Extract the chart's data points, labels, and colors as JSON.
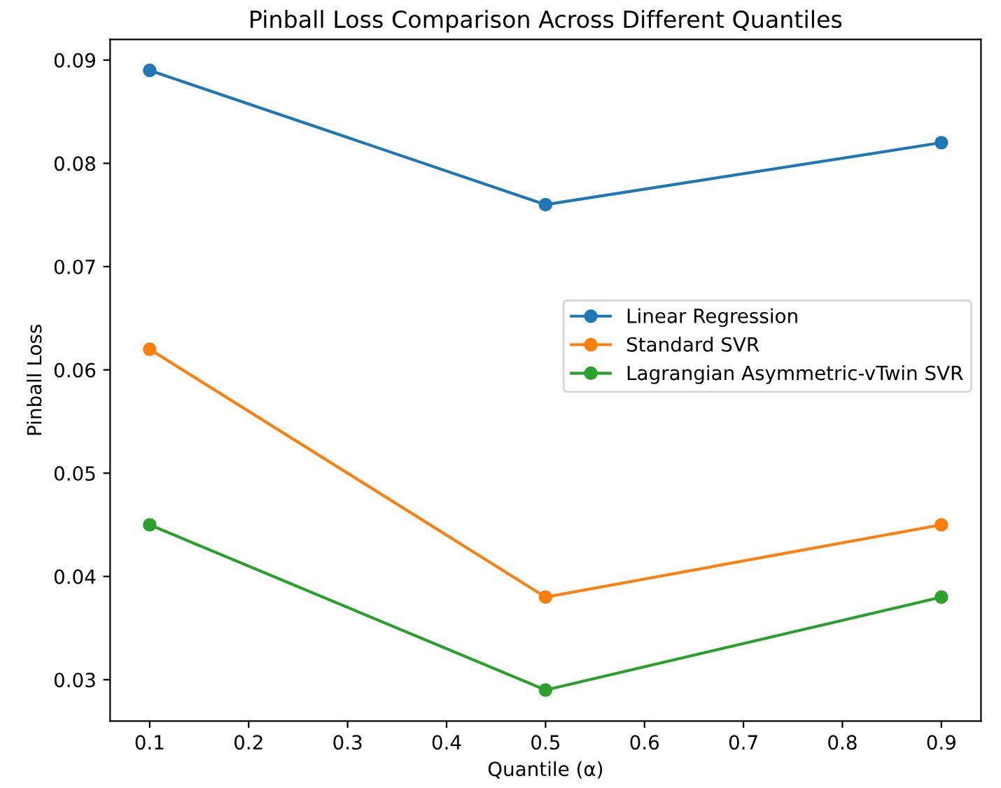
{
  "chart_data": {
    "type": "line",
    "title": "Pinball Loss Comparison Across Different Quantiles",
    "xlabel": "Quantile (α)",
    "ylabel": "Pinball Loss",
    "x": [
      0.1,
      0.5,
      0.9
    ],
    "series": [
      {
        "name": "Linear Regression",
        "color": "#1f77b4",
        "values": [
          0.089,
          0.076,
          0.082
        ]
      },
      {
        "name": "Standard SVR",
        "color": "#ff7f0e",
        "values": [
          0.062,
          0.038,
          0.045
        ]
      },
      {
        "name": "Lagrangian Asymmetric-vTwin SVR",
        "color": "#2ca02c",
        "values": [
          0.045,
          0.029,
          0.038
        ]
      }
    ],
    "xlim": [
      0.06,
      0.94
    ],
    "xticks": [
      0.1,
      0.2,
      0.3,
      0.4,
      0.5,
      0.6,
      0.7,
      0.8,
      0.9
    ],
    "ylim": [
      0.026,
      0.092
    ],
    "yticks": [
      0.03,
      0.04,
      0.05,
      0.06,
      0.07,
      0.08,
      0.09
    ],
    "marker": "circle",
    "line_style": "solid",
    "grid": false,
    "legend": "right"
  }
}
